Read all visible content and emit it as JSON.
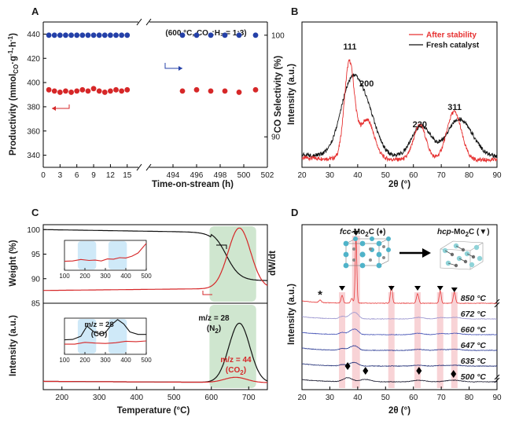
{
  "panels": [
    {
      "letter": "A"
    },
    {
      "letter": "B"
    },
    {
      "letter": "C"
    },
    {
      "letter": "D"
    }
  ],
  "chart_data": [
    {
      "panel": "A",
      "type": "scatter",
      "annotation": "(600 °C, CO₂:H₂ = 1:3)",
      "xlabel": "Time-on-stream (h)",
      "ylabel": "Productivity (mmol",
      "ylabel_sub": "CO",
      "ylabel_mid": "·g",
      "ylabel_sup": "-1",
      "ylabel_mid2": "·h",
      "ylabel_sup2": "-1",
      "ylabel_end": ")",
      "ylabel_right": "CO Selectivity (%)",
      "x_segments": [
        {
          "range": [
            0,
            17
          ],
          "ticks": [
            "0",
            "3",
            "6",
            "9",
            "12",
            "15"
          ],
          "tick_values": [
            0,
            3,
            6,
            9,
            12,
            15
          ]
        },
        {
          "range": [
            492,
            502
          ],
          "ticks": [
            "494",
            "496",
            "498",
            "500",
            "502"
          ],
          "tick_values": [
            494,
            496,
            498,
            500,
            502
          ]
        }
      ],
      "ylim": [
        330,
        450
      ],
      "yticks": [
        "340",
        "360",
        "380",
        "400",
        "420",
        "440"
      ],
      "ytick_values": [
        340,
        360,
        380,
        400,
        420,
        440
      ],
      "ylim_right": [
        87,
        101.3
      ],
      "yticks_right": [
        "90",
        "100"
      ],
      "ytick_right_values": [
        90,
        100
      ],
      "series": [
        {
          "axis": "left",
          "color": "#d62728",
          "x": [
            1,
            2,
            3,
            4,
            5,
            6,
            7,
            8,
            9,
            10,
            11,
            12,
            13,
            14,
            15,
            494.8,
            496,
            497.2,
            498.4,
            499.6,
            501
          ],
          "y": [
            394,
            393,
            392,
            393,
            392,
            393,
            394,
            393,
            395,
            393,
            392,
            393,
            394,
            393,
            394,
            393,
            394,
            393,
            393,
            392,
            394
          ]
        },
        {
          "axis": "right",
          "color": "#2440a8",
          "x": [
            1,
            2,
            3,
            4,
            5,
            6,
            7,
            8,
            9,
            10,
            11,
            12,
            13,
            14,
            15,
            494.8,
            496,
            497.2,
            498.4,
            499.6,
            501
          ],
          "y": [
            100,
            100,
            100,
            100,
            100,
            100,
            100,
            100,
            100,
            100,
            100,
            100,
            100,
            100,
            100,
            100,
            100,
            100,
            100,
            100,
            100
          ]
        }
      ]
    },
    {
      "panel": "B",
      "type": "line",
      "xlabel": "2θ (°)",
      "ylabel": "Intensity (a.u.)",
      "xlim": [
        20,
        90
      ],
      "xticks": [
        "20",
        "30",
        "40",
        "50",
        "60",
        "70",
        "80",
        "90"
      ],
      "xtick_values": [
        20,
        30,
        40,
        50,
        60,
        70,
        80,
        90
      ],
      "peak_labels": [
        {
          "text": "111",
          "x": 37.2
        },
        {
          "text": "200",
          "x": 43.2
        },
        {
          "text": "220",
          "x": 62.3
        },
        {
          "text": "311",
          "x": 74.8
        }
      ],
      "series": [
        {
          "name": "After stability",
          "color": "#e63030",
          "peaks": [
            [
              37.0,
              0.66,
              1.8
            ],
            [
              43.3,
              0.27,
              2.6
            ],
            [
              62.3,
              0.24,
              2.2
            ],
            [
              74.6,
              0.33,
              2.6
            ]
          ],
          "baseline": 0.05
        },
        {
          "name": "Fresh catalyst",
          "color": "#111111",
          "peaks": [
            [
              37.4,
              0.47,
              3.8
            ],
            [
              43.4,
              0.26,
              3.6
            ],
            [
              62.8,
              0.21,
              3.4
            ],
            [
              76.6,
              0.26,
              4.6
            ]
          ],
          "baseline": 0.07
        }
      ],
      "legend_position": "top-right"
    },
    {
      "panel": "C",
      "type": "line",
      "xlabel": "Temperature (°C)",
      "xlim": [
        150,
        750
      ],
      "xticks": [
        "200",
        "300",
        "400",
        "500",
        "600",
        "700"
      ],
      "xtick_values": [
        200,
        300,
        400,
        500,
        600,
        700
      ],
      "upper": {
        "ylabel": "Weight (%)",
        "ylabel_right": "dW/dt",
        "ylim": [
          85,
          101
        ],
        "yticks": [
          "85",
          "90",
          "95",
          "100"
        ],
        "ytick_values": [
          85,
          90,
          95,
          100
        ],
        "weight_curve": {
          "color": "#111111",
          "start": 100,
          "end": 89.6,
          "center": 640,
          "width": 18
        },
        "dwdt_curve": {
          "color": "#d62728",
          "base": 87.6,
          "peak": 100.3,
          "center": 675,
          "width": 30
        },
        "shaded_band": {
          "color": "#cfe6cf",
          "x": [
            595,
            720
          ]
        },
        "inset": {
          "xlim": [
            100,
            500
          ],
          "xticks": [
            "100",
            "200",
            "300",
            "400",
            "500"
          ],
          "xtick_values": [
            100,
            200,
            300,
            400,
            500
          ],
          "bands": [
            [
              165,
              255
            ],
            [
              315,
              405
            ]
          ],
          "curve_color": "#d62728",
          "curve_x": [
            100,
            140,
            180,
            220,
            250,
            280,
            310,
            340,
            370,
            400,
            430,
            460,
            500
          ],
          "curve_y": [
            0.3,
            0.31,
            0.36,
            0.33,
            0.34,
            0.31,
            0.38,
            0.37,
            0.42,
            0.41,
            0.47,
            0.58,
            0.9
          ]
        }
      },
      "lower": {
        "ylabel": "Intensity (a.u.)",
        "label_n2_a": "m/z = 28",
        "label_n2_b": "(N",
        "label_n2_sub": "2",
        "label_n2_c": ")",
        "label_co2_a": "m/z = 44",
        "label_co2_b": "(CO",
        "label_co2_sub": "2",
        "label_co2_c": ")",
        "n2_curve": {
          "color": "#111111",
          "base": 0.08,
          "peak": 1.0,
          "center": 675,
          "width": 28
        },
        "co2_curve": {
          "color": "#d62728",
          "base": 0.08,
          "peak": 0.16,
          "center": 665,
          "width": 30
        },
        "shaded_band": {
          "color": "#cfe6cf",
          "x": [
            595,
            720
          ]
        },
        "inset": {
          "label_a": "m/z = 28",
          "label_b": "(CO)",
          "xlim": [
            100,
            500
          ],
          "xticks": [
            "100",
            "200",
            "300",
            "400",
            "500"
          ],
          "xtick_values": [
            100,
            200,
            300,
            400,
            500
          ],
          "bands": [
            [
              165,
              255
            ],
            [
              315,
              405
            ]
          ],
          "black_x": [
            100,
            140,
            180,
            210,
            240,
            270,
            300,
            330,
            360,
            390,
            420,
            460,
            500
          ],
          "black_y": [
            0.4,
            0.41,
            0.5,
            0.78,
            0.64,
            0.56,
            0.6,
            0.82,
            0.96,
            0.84,
            0.62,
            0.55,
            0.55
          ],
          "red_x": [
            100,
            150,
            200,
            250,
            300,
            350,
            400,
            450,
            500
          ],
          "red_y": [
            0.28,
            0.28,
            0.33,
            0.31,
            0.3,
            0.32,
            0.36,
            0.35,
            0.37
          ]
        }
      }
    },
    {
      "panel": "D",
      "type": "line",
      "xlabel": "2θ (°)",
      "ylabel": "Intensity (a.u.)",
      "xlim": [
        20,
        90
      ],
      "xticks": [
        "20",
        "30",
        "40",
        "50",
        "60",
        "70",
        "80",
        "90"
      ],
      "xtick_values": [
        20,
        30,
        40,
        50,
        60,
        70,
        80,
        90
      ],
      "fcc_label_a": "fcc",
      "fcc_label_b": "-Mo",
      "fcc_label_sub": "2",
      "fcc_label_c": "C (♦)",
      "hcp_label_a": "hcp",
      "hcp_label_b": "-Mo",
      "hcp_label_sub": "2",
      "hcp_label_c": "C (▼)",
      "star_marker": "*",
      "star_x": 26.5,
      "hcp_peaks": [
        34.4,
        39.4,
        52.1,
        61.5,
        69.6,
        74.7
      ],
      "fcc_peaks": [
        36.4,
        42.8,
        62.0,
        74.4
      ],
      "series": [
        {
          "temp": "850 °C",
          "color": "#e63a3a"
        },
        {
          "temp": "672 °C",
          "color": "#9a95cf"
        },
        {
          "temp": "660 °C",
          "color": "#4654b6"
        },
        {
          "temp": "647 °C",
          "color": "#2a3a94"
        },
        {
          "temp": "635 °C",
          "color": "#1f2d75"
        },
        {
          "temp": "500 °C",
          "color": "#15152a"
        }
      ]
    }
  ]
}
